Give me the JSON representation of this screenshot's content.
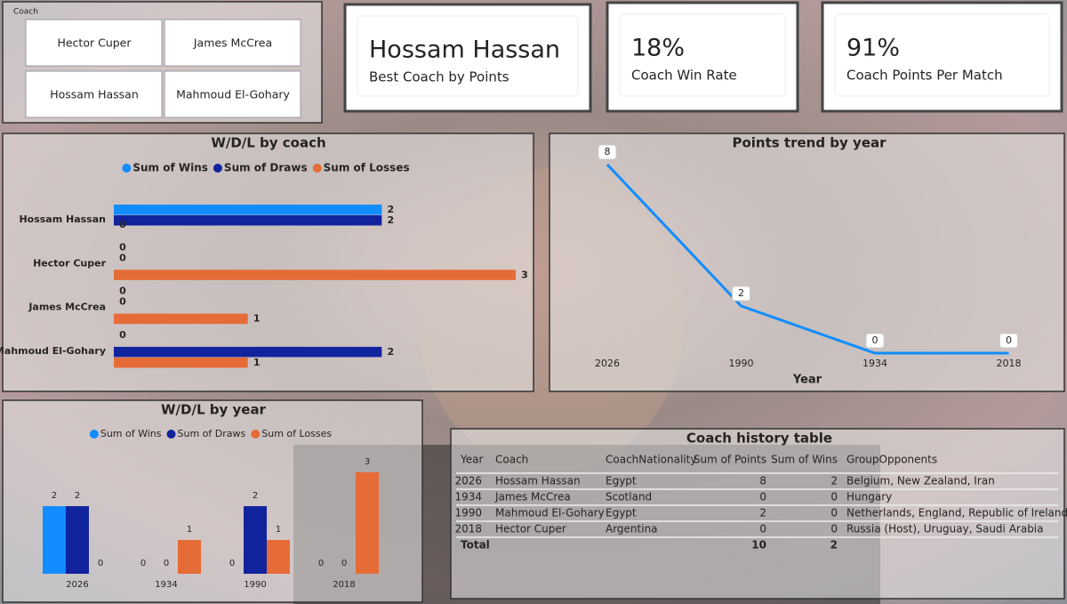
{
  "slicer": {
    "title": "Coach",
    "items": [
      "Hector Cuper",
      "James McCrea",
      "Hossam Hassan",
      "Mahmoud El-Gohary"
    ]
  },
  "cards": [
    {
      "value": "Hossam Hassan",
      "label": "Best Coach by Points"
    },
    {
      "value": "18%",
      "label": "Coach Win Rate"
    },
    {
      "value": "91%",
      "label": "Coach Points Per Match"
    }
  ],
  "chart_data": [
    {
      "type": "hbar",
      "title": "W/D/L by coach",
      "categories": [
        "Hossam Hassan",
        "Hector Cuper",
        "James McCrea",
        "Mahmoud El-Gohary"
      ],
      "series": [
        {
          "name": "Sum of Wins",
          "color": "#118dff",
          "values": [
            2,
            0,
            0,
            0
          ]
        },
        {
          "name": "Sum of Draws",
          "color": "#12239e",
          "values": [
            2,
            0,
            0,
            2
          ]
        },
        {
          "name": "Sum of Losses",
          "color": "#e66c37",
          "values": [
            0,
            3,
            1,
            1
          ]
        }
      ],
      "xlim": [
        0,
        3
      ]
    },
    {
      "type": "line",
      "title": "Points trend by year",
      "x_label": "Year",
      "categories": [
        "2026",
        "1990",
        "1934",
        "2018"
      ],
      "values": [
        8,
        2,
        0,
        0
      ],
      "color": "#118dff",
      "ylim": [
        0,
        8
      ]
    },
    {
      "type": "bar",
      "title": "W/D/L by year",
      "categories": [
        "2026",
        "1934",
        "1990",
        "2018"
      ],
      "series": [
        {
          "name": "Sum of Wins",
          "color": "#118dff",
          "values": [
            2,
            0,
            0,
            0
          ]
        },
        {
          "name": "Sum of Draws",
          "color": "#12239e",
          "values": [
            2,
            0,
            2,
            0
          ]
        },
        {
          "name": "Sum of Losses",
          "color": "#e66c37",
          "values": [
            0,
            1,
            1,
            3
          ]
        }
      ],
      "ylim": [
        0,
        3
      ]
    }
  ],
  "table": {
    "title": "Coach history table",
    "header": [
      "Year",
      "Coach",
      "CoachNationality",
      "Sum of Points",
      "Sum of Wins",
      "GroupOpponents"
    ],
    "rows": [
      [
        "2026",
        "Hossam Hassan",
        "Egypt",
        8,
        2,
        "Belgium, New Zealand, Iran"
      ],
      [
        "1934",
        "James McCrea",
        "Scotland",
        0,
        0,
        "Hungary"
      ],
      [
        "1990",
        "Mahmoud El-Gohary",
        "Egypt",
        2,
        0,
        "Netherlands, England, Republic of Ireland"
      ],
      [
        "2018",
        "Hector Cuper",
        "Argentina",
        0,
        0,
        "Russia (Host), Uruguay, Saudi Arabia"
      ]
    ],
    "total": [
      "Total",
      10,
      2
    ]
  }
}
